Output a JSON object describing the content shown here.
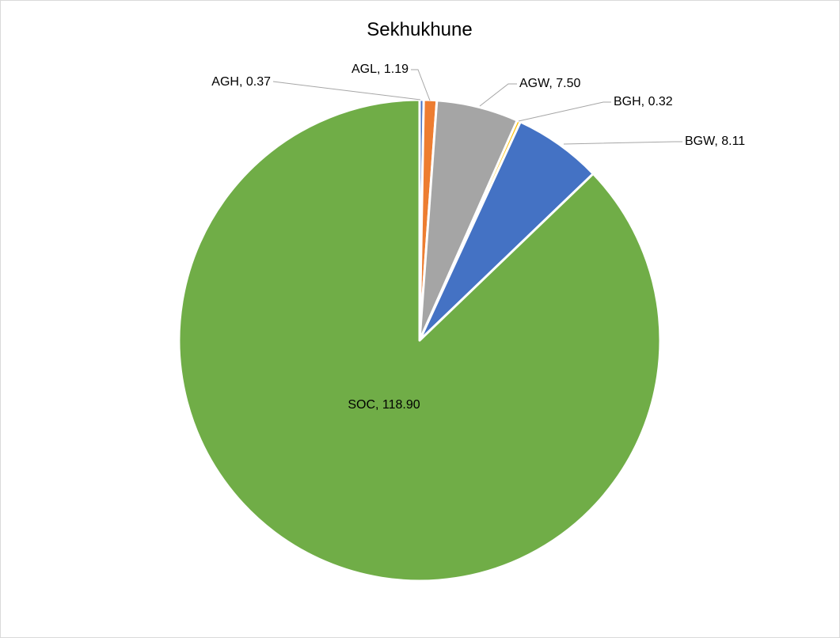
{
  "chart_data": {
    "type": "pie",
    "title": "Sekhukhune",
    "categories": [
      "AGH",
      "AGL",
      "AGW",
      "BGH",
      "BGW",
      "SOC"
    ],
    "values": [
      0.37,
      1.19,
      7.5,
      0.32,
      8.11,
      118.9
    ],
    "data_labels": [
      "AGH, 0.37",
      "AGL, 1.19",
      "AGW, 7.50",
      "BGH, 0.32",
      "BGW, 8.11",
      "SOC, 118.90"
    ],
    "colors": [
      "#4472c4",
      "#ed7d31",
      "#a5a5a5",
      "#ffc000",
      "#4472c4",
      "#70ad47"
    ],
    "start_angle": "12 o'clock",
    "direction": "clockwise",
    "legend": "none"
  }
}
